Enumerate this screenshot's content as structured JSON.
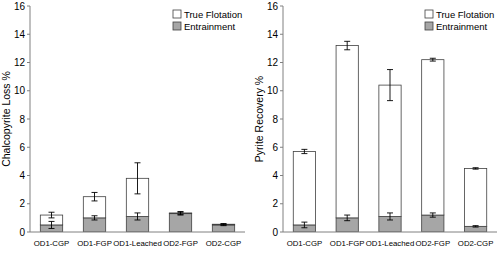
{
  "chart_data": [
    {
      "type": "bar",
      "stacked": true,
      "y_label": "Chalcopyrite Loss %",
      "categories": [
        "OD1-CGP",
        "OD1-FGP",
        "OD1-Leached",
        "OD2-FGP",
        "OD2-CGP"
      ],
      "series": [
        {
          "name": "Entrainment",
          "color": "#a6a6a6",
          "values": [
            0.5,
            1.0,
            1.1,
            1.3,
            0.5
          ],
          "errors": [
            0.25,
            0.15,
            0.25,
            0.1,
            0.05
          ]
        },
        {
          "name": "True Flotation",
          "color": "#ffffff",
          "values": [
            0.7,
            1.5,
            2.7,
            0.05,
            0.05
          ],
          "errors": [
            0.2,
            0.3,
            1.1,
            0.1,
            0.05
          ]
        }
      ],
      "ylim": [
        0,
        16
      ],
      "yticks": [
        0,
        2,
        4,
        6,
        8,
        10,
        12,
        14,
        16
      ],
      "grid": false,
      "legend": "upper right"
    },
    {
      "type": "bar",
      "stacked": true,
      "y_label": "Pyrite Recovery %",
      "categories": [
        "OD1-CGP",
        "OD1-FGP",
        "OD1-Leached",
        "OD2-FGP",
        "OD2-CGP"
      ],
      "series": [
        {
          "name": "Entrainment",
          "color": "#a6a6a6",
          "values": [
            0.5,
            1.0,
            1.1,
            1.2,
            0.4
          ],
          "errors": [
            0.2,
            0.2,
            0.25,
            0.15,
            0.05
          ]
        },
        {
          "name": "True Flotation",
          "color": "#ffffff",
          "values": [
            5.2,
            12.2,
            9.3,
            11.0,
            4.1
          ],
          "errors": [
            0.15,
            0.3,
            1.1,
            0.1,
            0.05
          ]
        }
      ],
      "ylim": [
        0,
        16
      ],
      "yticks": [
        0,
        2,
        4,
        6,
        8,
        10,
        12,
        14,
        16
      ],
      "grid": false,
      "legend": "upper right"
    }
  ]
}
